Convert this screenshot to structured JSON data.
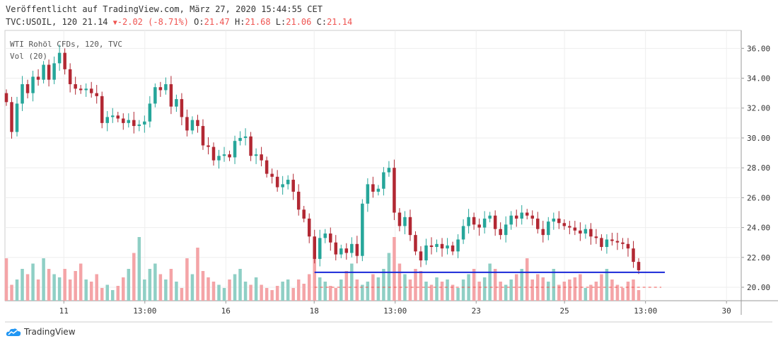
{
  "header": {
    "published": "Veröffentlicht auf TradingView.com, März 27, 2020 15:44:55 CET",
    "symbol": "TVC:USOIL, 120",
    "last": "21.14",
    "change": "-2.02 (-8.71%)",
    "o_label": "O:",
    "o_value": "21.47",
    "h_label": "H:",
    "h_value": "21.68",
    "l_label": "L:",
    "l_value": "21.06",
    "c_label": "C:",
    "c_value": "21.14"
  },
  "legend": {
    "series_title": "WTI Rohöl CFDs, 120, TVC",
    "volume_title": "Vol (20)"
  },
  "brand": {
    "name": "TradingView"
  },
  "colors": {
    "up": "#26a69a",
    "down": "#b22833",
    "vol_up": "#8fcfc5",
    "vol_down": "#f4a4a7",
    "hline": "#1a28d8",
    "hline_dashed": "#ef5350",
    "grid": "#eeeeee"
  },
  "chart_data": {
    "type": "candlestick",
    "y_ticks": [
      "36.00",
      "34.00",
      "32.00",
      "30.00",
      "28.00",
      "26.00",
      "24.00",
      "22.00",
      "20.00"
    ],
    "ylim": [
      19.1,
      37.2
    ],
    "x_ticks": [
      {
        "label": "11",
        "pos": 0.08
      },
      {
        "label": "13:00",
        "pos": 0.19
      },
      {
        "label": "16",
        "pos": 0.3
      },
      {
        "label": "18",
        "pos": 0.42
      },
      {
        "label": "13:00",
        "pos": 0.53
      },
      {
        "label": "23",
        "pos": 0.64
      },
      {
        "label": "25",
        "pos": 0.76
      },
      {
        "label": "13:00",
        "pos": 0.87
      },
      {
        "label": "30",
        "pos": 0.98
      }
    ],
    "hline_support": 21.0,
    "hline_dashed": 20.0,
    "closes": [
      32.4,
      30.4,
      32.3,
      33.6,
      33.0,
      34.1,
      33.9,
      34.9,
      33.9,
      35.0,
      35.7,
      34.6,
      33.6,
      33.3,
      33.2,
      33.3,
      33.0,
      32.8,
      31.0,
      31.4,
      31.5,
      31.3,
      31.0,
      31.2,
      30.8,
      30.9,
      31.1,
      32.3,
      33.4,
      33.2,
      33.6,
      32.1,
      32.6,
      31.4,
      30.5,
      31.2,
      30.8,
      29.5,
      29.4,
      28.5,
      28.8,
      28.9,
      28.7,
      29.8,
      30.0,
      30.1,
      28.8,
      28.9,
      28.5,
      27.6,
      27.4,
      26.7,
      26.9,
      27.2,
      26.4,
      25.2,
      24.6,
      23.4,
      21.9,
      23.3,
      23.6,
      23.0,
      22.2,
      22.6,
      22.3,
      22.9,
      22.1,
      25.6,
      26.9,
      26.4,
      26.6,
      27.7,
      28.0,
      25.0,
      24.1,
      24.7,
      23.5,
      22.4,
      21.8,
      22.8,
      22.7,
      22.9,
      22.6,
      22.8,
      22.4,
      23.2,
      24.1,
      24.7,
      24.2,
      24.0,
      24.6,
      24.8,
      23.9,
      23.5,
      24.2,
      24.8,
      24.6,
      25.0,
      24.8,
      24.6,
      23.9,
      23.5,
      24.4,
      24.6,
      24.3,
      24.1,
      24.0,
      23.8,
      23.6,
      23.9,
      23.4,
      23.3,
      22.7,
      23.2,
      23.1,
      23.0,
      22.9,
      22.6,
      21.7,
      21.14
    ],
    "volumes": [
      0.4,
      0.15,
      0.2,
      0.3,
      0.25,
      0.35,
      0.2,
      0.4,
      0.3,
      0.25,
      0.22,
      0.3,
      0.2,
      0.28,
      0.35,
      0.2,
      0.18,
      0.25,
      0.12,
      0.15,
      0.1,
      0.14,
      0.22,
      0.3,
      0.45,
      0.6,
      0.2,
      0.3,
      0.35,
      0.25,
      0.2,
      0.3,
      0.18,
      0.12,
      0.4,
      0.25,
      0.5,
      0.28,
      0.22,
      0.18,
      0.15,
      0.12,
      0.2,
      0.25,
      0.3,
      0.18,
      0.15,
      0.22,
      0.15,
      0.12,
      0.1,
      0.14,
      0.18,
      0.2,
      0.12,
      0.2,
      0.16,
      0.25,
      0.4,
      0.22,
      0.18,
      0.14,
      0.12,
      0.2,
      0.28,
      0.35,
      0.2,
      0.15,
      0.18,
      0.25,
      0.22,
      0.3,
      0.45,
      0.6,
      0.35,
      0.25,
      0.2,
      0.3,
      0.28,
      0.18,
      0.15,
      0.22,
      0.18,
      0.2,
      0.15,
      0.12,
      0.2,
      0.25,
      0.3,
      0.18,
      0.22,
      0.35,
      0.3,
      0.18,
      0.15,
      0.2,
      0.25,
      0.3,
      0.4,
      0.2,
      0.25,
      0.22,
      0.18,
      0.3,
      0.15,
      0.18,
      0.2,
      0.22,
      0.25,
      0.12,
      0.15,
      0.18,
      0.25,
      0.3,
      0.2,
      0.15,
      0.12,
      0.18,
      0.2,
      0.1
    ]
  }
}
